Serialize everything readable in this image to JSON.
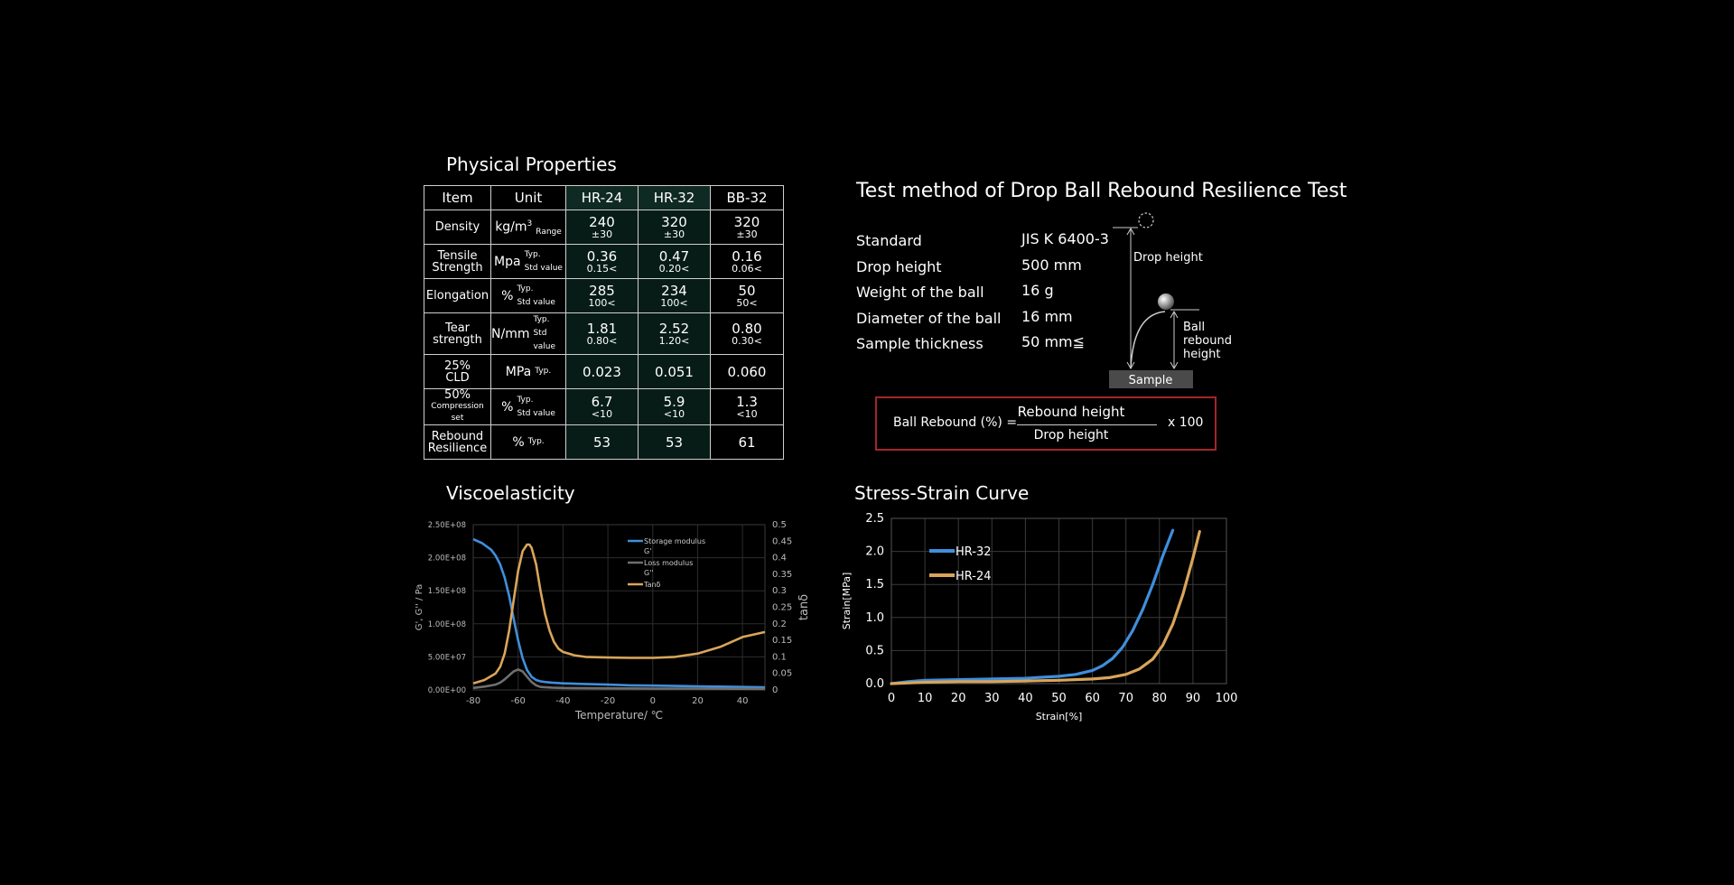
{
  "properties": {
    "title": "Physical Properties",
    "headers": [
      "Item",
      "Unit",
      "HR-24",
      "HR-32",
      "BB-32"
    ],
    "rows": [
      {
        "item": [
          "Density"
        ],
        "unit": "kg/m",
        "unit_sup": "3",
        "qualifiers": [
          "Range"
        ],
        "values": [
          [
            "240",
            "±30"
          ],
          [
            "320",
            "±30"
          ],
          [
            "320",
            "±30"
          ]
        ]
      },
      {
        "item": [
          "Tensile",
          "Strength"
        ],
        "unit": "Mpa",
        "qualifiers": [
          "Typ.",
          "Std value"
        ],
        "values": [
          [
            "0.36",
            "0.15<"
          ],
          [
            "0.47",
            "0.20<"
          ],
          [
            "0.16",
            "0.06<"
          ]
        ]
      },
      {
        "item": [
          "Elongation"
        ],
        "unit": "%",
        "qualifiers": [
          "Typ.",
          "Std value"
        ],
        "values": [
          [
            "285",
            "100<"
          ],
          [
            "234",
            "100<"
          ],
          [
            "50",
            "50<"
          ]
        ]
      },
      {
        "item": [
          "Tear",
          "strength"
        ],
        "unit": "N/mm",
        "qualifiers": [
          "Typ.",
          "Std value"
        ],
        "values": [
          [
            "1.81",
            "0.80<"
          ],
          [
            "2.52",
            "1.20<"
          ],
          [
            "0.80",
            "0.30<"
          ]
        ]
      },
      {
        "item": [
          "25%",
          "CLD"
        ],
        "unit": "MPa",
        "qualifiers": [
          "Typ."
        ],
        "values": [
          [
            "0.023"
          ],
          [
            "0.051"
          ],
          [
            "0.060"
          ]
        ]
      },
      {
        "item": [
          "50%",
          "Compression set"
        ],
        "unit": "%",
        "qualifiers": [
          "Typ.",
          "Std value"
        ],
        "values": [
          [
            "6.7",
            "<10"
          ],
          [
            "5.9",
            "<10"
          ],
          [
            "1.3",
            "<10"
          ]
        ]
      },
      {
        "item": [
          "Rebound",
          "Resilience"
        ],
        "unit": "%",
        "qualifiers": [
          "Typ."
        ],
        "values": [
          [
            "53"
          ],
          [
            "53"
          ],
          [
            "61"
          ]
        ]
      }
    ]
  },
  "test_method": {
    "title": "Test method of Drop Ball Rebound Resilience Test",
    "specs": [
      {
        "label": "Standard",
        "value": "JIS K 6400-3"
      },
      {
        "label": "Drop height",
        "value": "500 mm"
      },
      {
        "label": "Weight of the ball",
        "value": "16 g"
      },
      {
        "label": "Diameter of the ball",
        "value": "16 mm"
      },
      {
        "label": "Sample thickness",
        "value": "50 mm≦"
      }
    ],
    "diagram": {
      "drop_height_label": "Drop height",
      "rebound_label": [
        "Ball",
        "rebound",
        "height"
      ],
      "sample_label": "Sample"
    },
    "formula": {
      "lhs": "Ball Rebound (%) =",
      "numerator": "Rebound height",
      "denominator": "Drop height",
      "multiplier": "x 100"
    }
  },
  "colors": {
    "blue": "#3f8fdc",
    "gray": "#6e6e6e",
    "orange": "#d9a55a",
    "border_red": "#a3262a"
  },
  "chart_data": [
    {
      "type": "line",
      "title": "Viscoelasticity",
      "xlabel": "Temperature/ ℃",
      "ylabel": "G', G'' / Pa",
      "y2label": "tanδ",
      "xlim": [
        -80,
        50
      ],
      "ylim": [
        0,
        250000000
      ],
      "y2lim": [
        0,
        0.5
      ],
      "xticks": [
        "-80",
        "-60",
        "-40",
        "-20",
        "0",
        "20",
        "40"
      ],
      "yticks": [
        "0.00E+00",
        "5.00E+07",
        "1.00E+08",
        "1.50E+08",
        "2.00E+08",
        "2.50E+08"
      ],
      "y2ticks": [
        "0",
        "0.05",
        "0.1",
        "0.15",
        "0.2",
        "0.25",
        "0.3",
        "0.35",
        "0.4",
        "0.45",
        "0.5"
      ],
      "legend": [
        {
          "text": [
            "Storage modulus",
            "G'"
          ],
          "color": "#3f8fdc"
        },
        {
          "text": [
            "Loss modulus",
            "G''"
          ],
          "color": "#6e6e6e"
        },
        {
          "text": [
            "Tanδ"
          ],
          "color": "#d9a55a"
        }
      ],
      "legend_position": "top-right",
      "grid": true,
      "series": [
        {
          "axis": "left",
          "color": "#3f8fdc",
          "x": [
            -80,
            -76,
            -72,
            -70,
            -68,
            -66,
            -64,
            -62,
            -60,
            -58,
            -56,
            -54,
            -52,
            -50,
            -48,
            -45,
            -40,
            -30,
            -20,
            -10,
            0,
            10,
            20,
            30,
            40,
            50
          ],
          "y": [
            228000000,
            222000000,
            212000000,
            203000000,
            190000000,
            170000000,
            142000000,
            108000000,
            75000000,
            48000000,
            30000000,
            20000000,
            15000000,
            13000000,
            12000000,
            11000000,
            10000000,
            9000000,
            8000000,
            7000000,
            6500000,
            6000000,
            5500000,
            5000000,
            4500000,
            4000000
          ]
        },
        {
          "axis": "left",
          "color": "#6e6e6e",
          "x": [
            -80,
            -75,
            -70,
            -68,
            -66,
            -64,
            -62,
            -60,
            -58,
            -56,
            -54,
            -52,
            -50,
            -45,
            -40,
            -20,
            0,
            20,
            50
          ],
          "y": [
            3000000,
            5000000,
            8000000,
            11000000,
            16000000,
            22000000,
            28000000,
            31000000,
            28000000,
            20000000,
            12000000,
            7000000,
            4500000,
            3500000,
            3000000,
            2500000,
            2000000,
            2000000,
            1500000
          ]
        },
        {
          "axis": "right",
          "color": "#d9a55a",
          "x": [
            -80,
            -75,
            -70,
            -68,
            -66,
            -64,
            -62,
            -60,
            -58,
            -56,
            -55,
            -54,
            -52,
            -50,
            -48,
            -46,
            -44,
            -42,
            -40,
            -35,
            -30,
            -20,
            -10,
            0,
            10,
            20,
            30,
            40,
            50
          ],
          "y": [
            0.02,
            0.03,
            0.05,
            0.07,
            0.11,
            0.18,
            0.27,
            0.36,
            0.42,
            0.44,
            0.44,
            0.43,
            0.38,
            0.3,
            0.23,
            0.18,
            0.145,
            0.125,
            0.115,
            0.105,
            0.1,
            0.098,
            0.097,
            0.097,
            0.1,
            0.11,
            0.13,
            0.16,
            0.175
          ]
        }
      ]
    },
    {
      "type": "line",
      "title": "Stress-Strain Curve",
      "xlabel": "Strain[%]",
      "ylabel": "Strain[MPa]",
      "xlim": [
        0,
        100
      ],
      "ylim": [
        0,
        2.5
      ],
      "xticks": [
        "0",
        "10",
        "20",
        "30",
        "40",
        "50",
        "60",
        "70",
        "80",
        "90",
        "100"
      ],
      "yticks": [
        "0.0",
        "0.5",
        "1.0",
        "1.5",
        "2.0",
        "2.5"
      ],
      "legend_position": "top-left",
      "grid": true,
      "series": [
        {
          "name": "HR-32",
          "color": "#3f8fdc",
          "x": [
            0,
            5,
            10,
            20,
            30,
            40,
            50,
            55,
            60,
            63,
            66,
            69,
            72,
            75,
            78,
            81,
            84
          ],
          "y": [
            0.0,
            0.03,
            0.05,
            0.06,
            0.07,
            0.08,
            0.11,
            0.14,
            0.2,
            0.27,
            0.38,
            0.55,
            0.8,
            1.12,
            1.5,
            1.93,
            2.32
          ]
        },
        {
          "name": "HR-24",
          "color": "#d9a55a",
          "x": [
            0,
            10,
            20,
            30,
            40,
            50,
            60,
            65,
            70,
            74,
            78,
            81,
            84,
            87,
            90,
            92
          ],
          "y": [
            0.0,
            0.02,
            0.03,
            0.03,
            0.04,
            0.05,
            0.07,
            0.09,
            0.14,
            0.22,
            0.37,
            0.58,
            0.9,
            1.35,
            1.9,
            2.3
          ]
        }
      ]
    }
  ]
}
